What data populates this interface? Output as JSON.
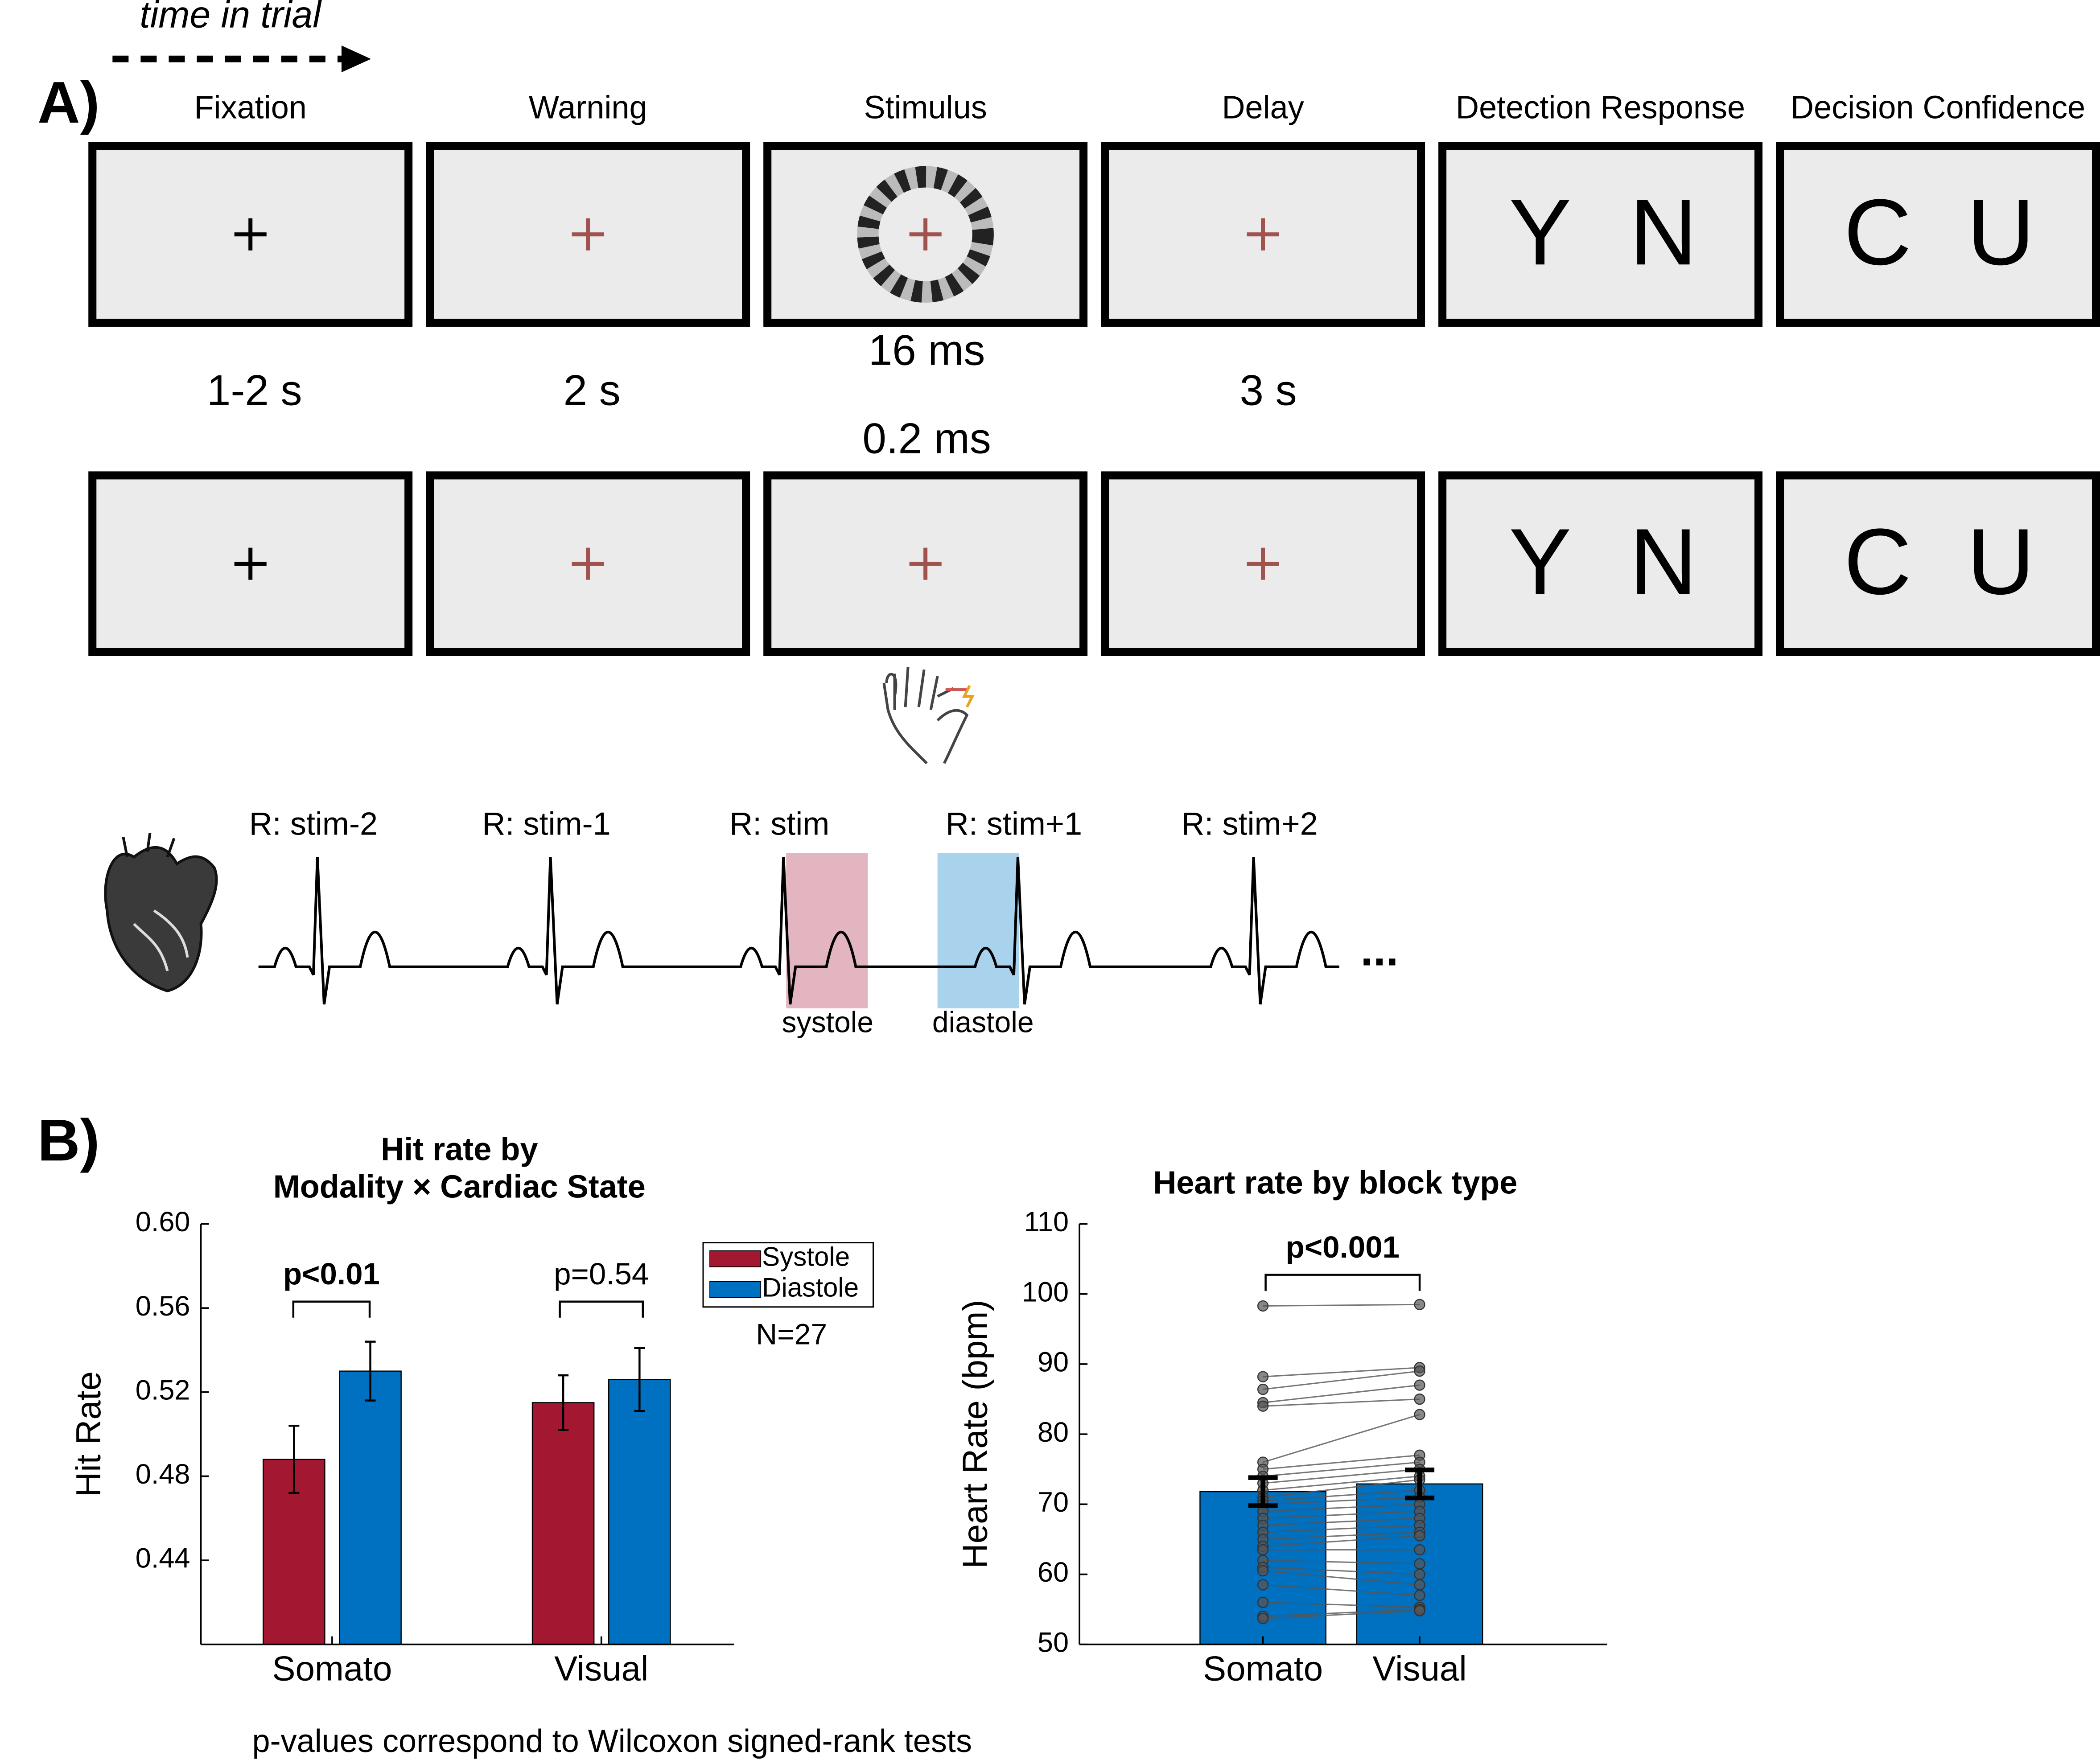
{
  "panel_a": {
    "label": "A)",
    "time_label": "time in trial",
    "screens": [
      "Fixation",
      "Warning",
      "Stimulus",
      "Delay",
      "Detection Response",
      "Decision Confidence"
    ],
    "durations": [
      "1-2 s",
      "2 s",
      "3 s"
    ],
    "stim_durations": [
      "16 ms",
      "0.2 ms"
    ],
    "response_keys": [
      [
        "Y",
        "N"
      ],
      [
        "C",
        "U"
      ]
    ],
    "r_peaks": [
      "R: stim-2",
      "R: stim-1",
      "R: stim",
      "R: stim+1",
      "R: stim+2"
    ],
    "phases": [
      "systole",
      "diastole"
    ],
    "ellipsis": "..."
  },
  "panel_b": {
    "label": "B)",
    "footnote": "p-values correspond to Wilcoxon signed-rank tests"
  },
  "chart_data": [
    {
      "type": "bar",
      "title": [
        "Hit rate by",
        "Modality × Cardiac State"
      ],
      "y_label": "Hit Rate",
      "categories": [
        "Somato",
        "Visual"
      ],
      "series": [
        {
          "name": "Systole",
          "color": "#a31830",
          "values": [
            0.488,
            0.515
          ],
          "errors": [
            0.016,
            0.013
          ]
        },
        {
          "name": "Diastole",
          "color": "#0070c0",
          "values": [
            0.53,
            0.526
          ],
          "errors": [
            0.014,
            0.015
          ]
        }
      ],
      "ylim": [
        0.4,
        0.6
      ],
      "yticks": [
        0.44,
        0.48,
        0.52,
        0.56,
        {
          "value": 0.6,
          "label": "0.60"
        }
      ],
      "legend": "upper right",
      "annotations": [
        "p<0.01",
        "p=0.54"
      ],
      "note": "N=27"
    },
    {
      "type": "bar",
      "title": "Heart rate by block type",
      "y_label": "Heart Rate (bpm)",
      "categories": [
        "Somato",
        "Visual"
      ],
      "values": [
        71.8,
        72.9
      ],
      "errors": [
        2.0,
        2.0
      ],
      "color": "#0070c0",
      "points": [
        [
          98.3,
          88.2,
          86.4,
          84.5,
          84.0,
          76.0,
          75.0,
          74.0,
          73.0,
          72.0,
          71.0,
          70.5,
          70.0,
          69.0,
          68.0,
          67.0,
          66.0,
          65.0,
          64.0,
          63.5,
          62.0,
          61.0,
          60.5,
          58.5,
          56.0,
          54.0,
          53.7
        ],
        [
          98.5,
          89.5,
          89.0,
          87.0,
          85.0,
          82.8,
          77.0,
          76.0,
          75.0,
          74.0,
          73.5,
          72.0,
          71.0,
          70.0,
          69.0,
          68.0,
          67.0,
          66.0,
          65.5,
          63.5,
          61.5,
          60.0,
          58.5,
          57.0,
          55.3,
          55.0,
          54.8
        ]
      ],
      "points_color": "#555555",
      "ylim": [
        50,
        110
      ],
      "yticks": [
        50,
        60,
        70,
        80,
        90,
        100,
        110
      ],
      "annotations": [
        "p<0.001"
      ]
    }
  ]
}
